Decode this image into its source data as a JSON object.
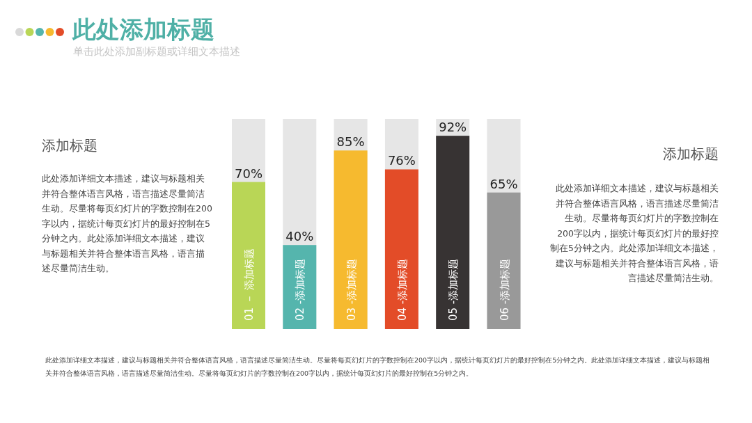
{
  "chart_data": {
    "type": "bar",
    "title": "此处添加标题",
    "subtitle": "单击此处添加副标题或详细文本描述",
    "categories": [
      "01 － 添加标题",
      "02 -添加标题",
      "03 -添加标题",
      "04 -添加标题",
      "05 -添加标题",
      "06 -添加标题"
    ],
    "values": [
      70,
      40,
      85,
      76,
      92,
      65
    ],
    "value_labels": [
      "70%",
      "40%",
      "85%",
      "76%",
      "92%",
      "65%"
    ],
    "colors": [
      "#b9d656",
      "#55b5ad",
      "#f6ba2f",
      "#e34c28",
      "#373333",
      "#999999"
    ],
    "ylim": [
      0,
      100
    ],
    "annotations": [
      "添加标题",
      "此处添加详细文本描述，建议与标题相关并符合整体语言风格，语言描述尽量简洁生动。尽量将每页幻灯片的字数控制在200字以内，据统计每页幻灯片的最好控制在5分钟之内。此处添加详细文本描述，建议与标题相关并符合整体语言风格，语言描述尽量简洁生动。",
      "添加标题",
      "此处添加详细文本描述，建议与标题相关并符合整体语言风格，语言描述尽量简洁生动。尽量将每页幻灯片的字数控制在200字以内，据统计每页幻灯片的最好控制在5分钟之内。此处添加详细文本描述，建议与标题相关并符合整体语言风格，语言描述尽量简洁生动。",
      "此处添加详细文本描述，建议与标题相关并符合整体语言风格，语言描述尽量简洁生动。尽量将每页幻灯片的字数控制在200字以内，据统计每页幻灯片的最好控制在5分钟之内。此处添加详细文本描述，建议与标题相关并符合整体语言风格，语言描述尽量简洁生动。尽量将每页幻灯片的字数控制在200字以内，据统计每页幻灯片的最好控制在5分钟之内。"
    ]
  }
}
